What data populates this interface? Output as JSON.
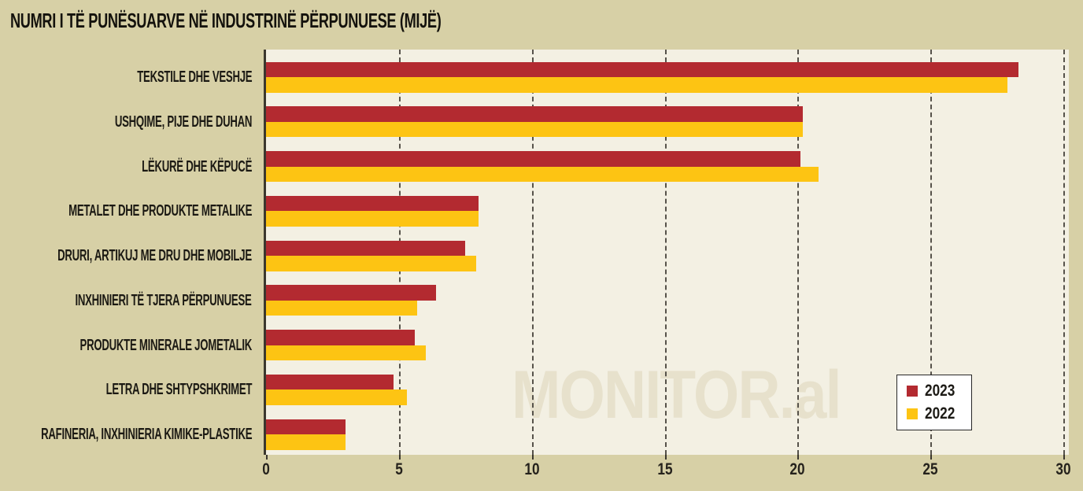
{
  "title": "NUMRI I TË PUNËSUARVE NË INDUSTRINË PËRPUNUESE (MIJË)",
  "watermark": "MONITOR.al",
  "colors": {
    "background": "#d7d0a6",
    "plot_background": "#f3f0e3",
    "series_2023": "#b32a30",
    "series_2022": "#fdc413",
    "grid": "#56524a",
    "axis": "#3b372e",
    "text": "#1b1913",
    "watermark": "#e7e1cc",
    "legend_background": "#ffffff",
    "legend_border": "#272727"
  },
  "chart_data": {
    "type": "bar",
    "orientation": "horizontal",
    "title": "NUMRI I TË PUNËSUARVE NË INDUSTRINË PËRPUNUESE (MIJË)",
    "categories": [
      "TEKSTILE DHE VESHJE",
      "USHQIME, PIJE DHE DUHAN",
      "LËKURË DHE KËPUCË",
      "METALET DHE PRODUKTE METALIKE",
      "DRURI, ARTIKUJ ME DRU DHE MOBILJE",
      "INXHINIERI TË TJERA PËRPUNUESE",
      "PRODUKTE MINERALE JOMETALIK",
      "LETRA DHE SHTYPSHKRIMET",
      "RAFINERIA, INXHINIERIA KIMIKE-PLASTIKE"
    ],
    "series": [
      {
        "name": "2023",
        "color": "#b32a30",
        "values": [
          28.3,
          20.2,
          20.1,
          8.0,
          7.5,
          6.4,
          5.6,
          4.8,
          3.0
        ]
      },
      {
        "name": "2022",
        "color": "#fdc413",
        "values": [
          27.9,
          20.2,
          20.8,
          8.0,
          7.9,
          5.7,
          6.0,
          5.3,
          3.0
        ]
      }
    ],
    "xlim": [
      0,
      30
    ],
    "x_ticks": [
      0,
      5,
      10,
      15,
      20,
      25,
      30
    ],
    "xlabel": "",
    "ylabel": "",
    "grid": "vertical-dashed",
    "legend_position": "inside-right-bottom",
    "units": "thousand employees"
  }
}
